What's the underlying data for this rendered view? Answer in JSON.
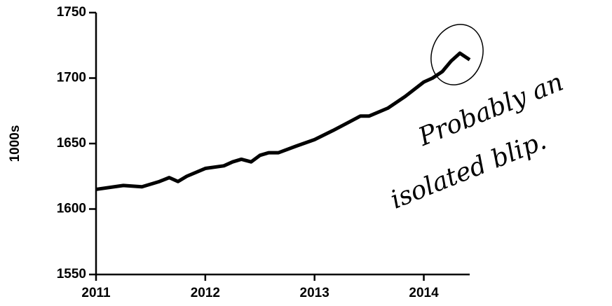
{
  "chart_data": {
    "type": "line",
    "ylabel": "1000s",
    "annotation": [
      "Probably an",
      "isolated blip."
    ],
    "x": [
      2011.0,
      2011.25,
      2011.42,
      2011.58,
      2011.67,
      2011.75,
      2011.83,
      2012.0,
      2012.17,
      2012.25,
      2012.33,
      2012.42,
      2012.5,
      2012.58,
      2012.67,
      2012.83,
      2013.0,
      2013.17,
      2013.33,
      2013.42,
      2013.5,
      2013.67,
      2013.83,
      2014.0,
      2014.08,
      2014.17,
      2014.25,
      2014.33,
      2014.42
    ],
    "series": [
      {
        "color": "#000000",
        "values": [
          1615,
          1618,
          1617,
          1621,
          1624,
          1621,
          1625,
          1631,
          1633,
          1636,
          1638,
          1636,
          1641,
          1643,
          1643,
          1648,
          1653,
          1660,
          1667,
          1671,
          1671,
          1677,
          1686,
          1697,
          1700,
          1705,
          1713,
          1719,
          1714
        ]
      }
    ],
    "xlim": [
      2011,
      2014.42
    ],
    "xticks": [
      2011,
      2012,
      2013,
      2014
    ],
    "ylim": [
      1550,
      1750
    ],
    "yticks": [
      1550,
      1600,
      1650,
      1700,
      1750
    ],
    "grid": false
  }
}
